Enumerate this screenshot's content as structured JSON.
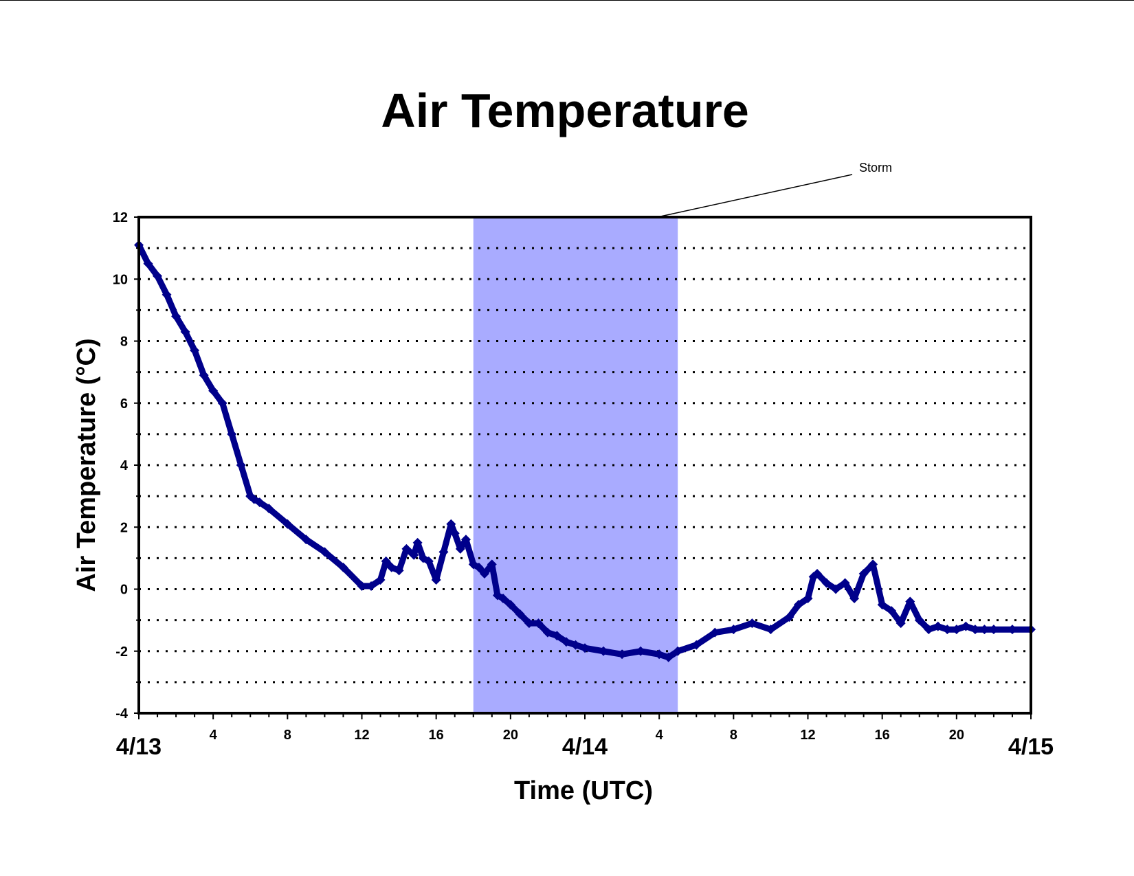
{
  "chart_data": {
    "type": "line",
    "title": "Air Temperature",
    "xlabel": "Time (UTC)",
    "ylabel": "Air Temperature (°C)",
    "ylim": [
      -4,
      12
    ],
    "yticks": [
      -4,
      -2,
      0,
      2,
      4,
      6,
      8,
      10,
      12
    ],
    "xlim_hours": [
      0,
      48
    ],
    "xtick_labels": [
      {
        "hour": 4,
        "label": "4"
      },
      {
        "hour": 8,
        "label": "8"
      },
      {
        "hour": 12,
        "label": "12"
      },
      {
        "hour": 16,
        "label": "16"
      },
      {
        "hour": 20,
        "label": "20"
      },
      {
        "hour": 28,
        "label": "4"
      },
      {
        "hour": 32,
        "label": "8"
      },
      {
        "hour": 36,
        "label": "12"
      },
      {
        "hour": 40,
        "label": "16"
      },
      {
        "hour": 44,
        "label": "20"
      }
    ],
    "date_labels": [
      {
        "hour": 0,
        "label": "4/13"
      },
      {
        "hour": 24,
        "label": "4/14"
      },
      {
        "hour": 48,
        "label": "4/15"
      }
    ],
    "grid": "dotted horizontal lines every 1 °C",
    "shaded_region": {
      "label": "Storm",
      "start_hour": 18,
      "end_hour": 29,
      "color": "#a9abff"
    },
    "series": [
      {
        "color": "#00008b",
        "x_hours": [
          0,
          0.5,
          1,
          1.5,
          2,
          2.5,
          3,
          3.5,
          4,
          4.5,
          5,
          5.5,
          6,
          6.2,
          6.5,
          7,
          8,
          9,
          10,
          11,
          12,
          12.5,
          13,
          13.3,
          13.6,
          14,
          14.4,
          14.8,
          15,
          15.3,
          15.6,
          16,
          16.4,
          16.8,
          17,
          17.3,
          17.6,
          18,
          18.3,
          18.6,
          19,
          19.3,
          19.6,
          20,
          20.5,
          21,
          21.5,
          22,
          22.5,
          23,
          23.5,
          24,
          25,
          26,
          27,
          28,
          28.5,
          29,
          30,
          31,
          32,
          33,
          34,
          35,
          35.5,
          36,
          36.3,
          36.5,
          37,
          37.5,
          38,
          38.5,
          39,
          39.5,
          40,
          40.5,
          41,
          41.5,
          42,
          42.5,
          43,
          43.5,
          44,
          44.5,
          45,
          45.5,
          46,
          47,
          48
        ],
        "values": [
          11.1,
          10.5,
          10.1,
          9.5,
          8.8,
          8.3,
          7.7,
          6.9,
          6.4,
          6.0,
          5.0,
          4.0,
          3.0,
          2.9,
          2.8,
          2.6,
          2.1,
          1.6,
          1.2,
          0.7,
          0.1,
          0.1,
          0.3,
          0.9,
          0.7,
          0.6,
          1.3,
          1.1,
          1.5,
          1.0,
          0.9,
          0.3,
          1.2,
          2.1,
          1.8,
          1.3,
          1.6,
          0.8,
          0.7,
          0.5,
          0.8,
          -0.2,
          -0.3,
          -0.5,
          -0.8,
          -1.1,
          -1.1,
          -1.4,
          -1.5,
          -1.7,
          -1.8,
          -1.9,
          -2.0,
          -2.1,
          -2.0,
          -2.1,
          -2.2,
          -2.0,
          -1.8,
          -1.4,
          -1.3,
          -1.1,
          -1.3,
          -0.9,
          -0.5,
          -0.3,
          0.4,
          0.5,
          0.2,
          0.0,
          0.2,
          -0.3,
          0.5,
          0.8,
          -0.5,
          -0.7,
          -1.1,
          -0.4,
          -1.0,
          -1.3,
          -1.2,
          -1.3,
          -1.3,
          -1.2,
          -1.3,
          -1.3,
          -1.3,
          -1.3,
          -1.3
        ]
      }
    ]
  }
}
